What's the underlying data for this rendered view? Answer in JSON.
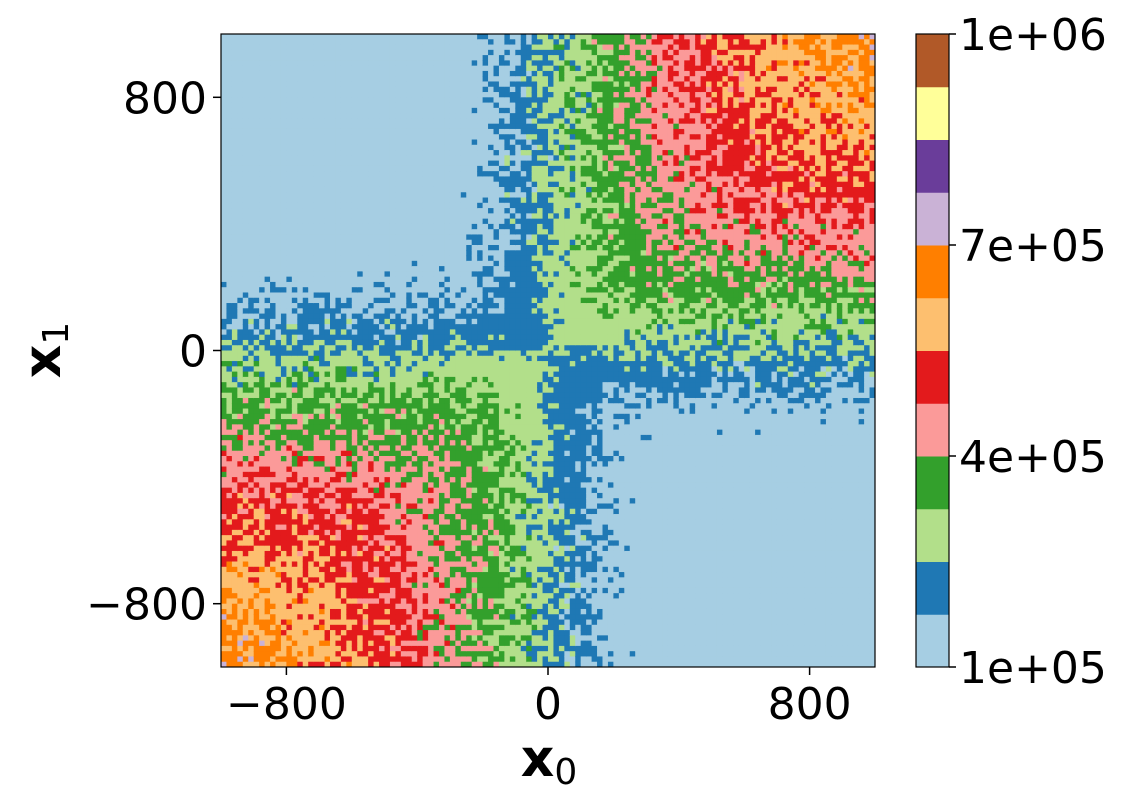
{
  "chart_data": {
    "type": "heatmap",
    "subtype": "filled-contour",
    "xlabel": "x",
    "xlabel_sub": "0",
    "ylabel": "x",
    "ylabel_sub": "1",
    "xlim": [
      -1000,
      1000
    ],
    "ylim": [
      -1000,
      1000
    ],
    "x_ticks": [
      -800,
      0,
      800
    ],
    "x_tick_labels": [
      "−800",
      "0",
      "800"
    ],
    "y_ticks": [
      -800,
      0,
      800
    ],
    "y_tick_labels": [
      "−800",
      "0",
      "800"
    ],
    "colorbar": {
      "min": 100000,
      "max": 1000000,
      "tick_values": [
        100000,
        400000,
        700000,
        1000000
      ],
      "tick_labels": [
        "1e+05",
        "4e+05",
        "7e+05",
        "1e+06"
      ],
      "levels": [
        {
          "from": 100000,
          "to": 175000,
          "color": "#a6cee3"
        },
        {
          "from": 175000,
          "to": 250000,
          "color": "#1f78b4"
        },
        {
          "from": 250000,
          "to": 325000,
          "color": "#b2df8a"
        },
        {
          "from": 325000,
          "to": 400000,
          "color": "#33a02c"
        },
        {
          "from": 400000,
          "to": 475000,
          "color": "#fb9a99"
        },
        {
          "from": 475000,
          "to": 550000,
          "color": "#e31a1c"
        },
        {
          "from": 550000,
          "to": 625000,
          "color": "#fdbf6f"
        },
        {
          "from": 625000,
          "to": 700000,
          "color": "#ff7f00"
        },
        {
          "from": 700000,
          "to": 775000,
          "color": "#cab2d6"
        },
        {
          "from": 775000,
          "to": 850000,
          "color": "#6a3d9a"
        },
        {
          "from": 850000,
          "to": 925000,
          "color": "#ffff99"
        },
        {
          "from": 925000,
          "to": 1000000,
          "color": "#b15928"
        }
      ]
    },
    "field_description": "approx f(x0,x1) = 250000 + 300000*(r/1000)*sin(2*theta), noisy; high values in quadrants I and III, low values in quadrants II and IV"
  }
}
